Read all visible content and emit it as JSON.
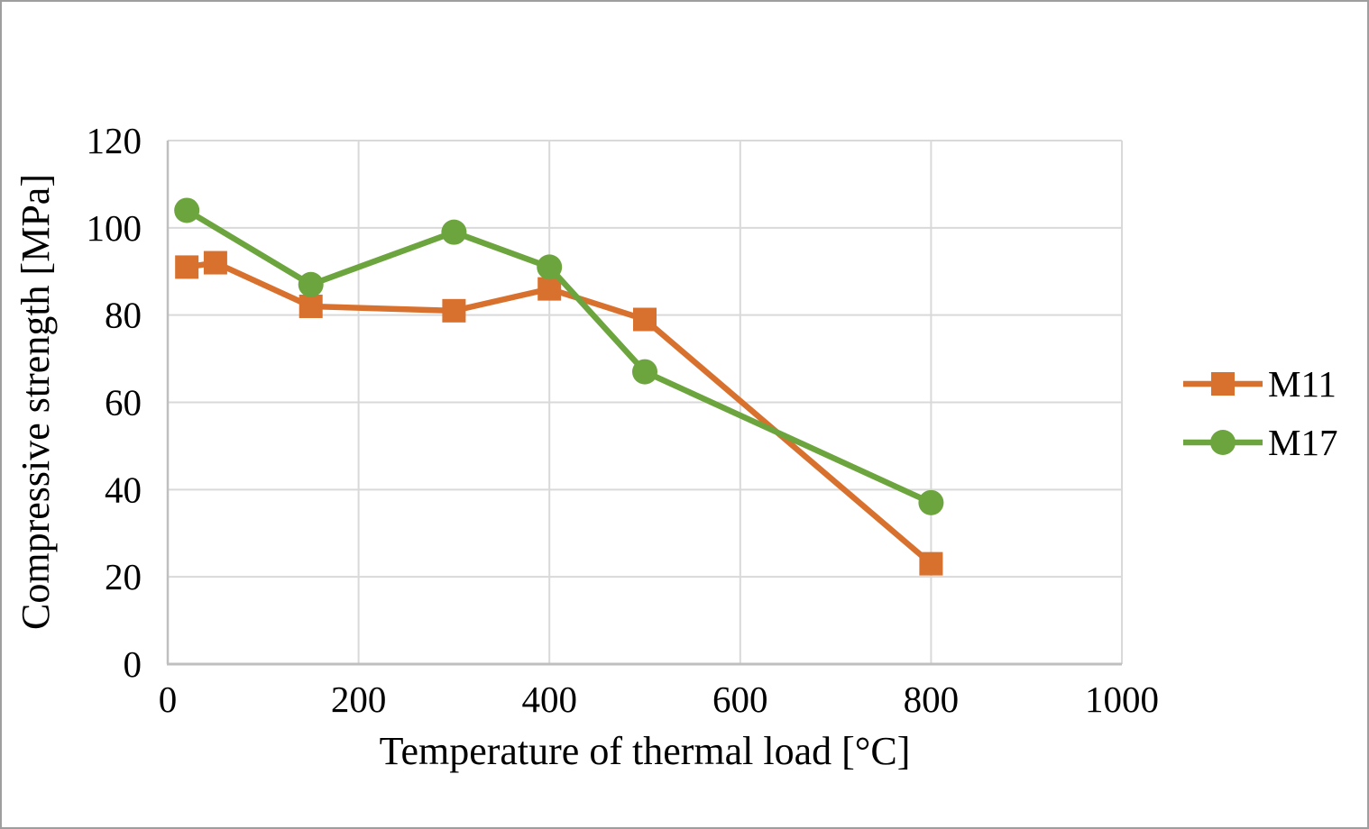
{
  "window": {
    "background": "#FFFFFF",
    "border_color": "#9E9E9E"
  },
  "chart_data": {
    "type": "line",
    "title": "",
    "xlabel": "Temperature of thermal load [°C]",
    "ylabel": "Compressive strength [MPa]",
    "xlim": [
      0,
      1000
    ],
    "ylim": [
      0,
      120
    ],
    "x_ticks": [
      0,
      200,
      400,
      600,
      800,
      1000
    ],
    "y_ticks": [
      0,
      20,
      40,
      60,
      80,
      100,
      120
    ],
    "grid": true,
    "legend_position": "right-middle",
    "series": [
      {
        "name": "M11",
        "color": "#D9712E",
        "marker": "square",
        "points": [
          [
            20,
            91
          ],
          [
            50,
            92
          ],
          [
            150,
            82
          ],
          [
            300,
            81
          ],
          [
            400,
            86
          ],
          [
            500,
            79
          ],
          [
            800,
            23
          ]
        ]
      },
      {
        "name": "M17",
        "color": "#6CA43D",
        "marker": "circle",
        "points": [
          [
            20,
            104
          ],
          [
            150,
            87
          ],
          [
            300,
            99
          ],
          [
            400,
            91
          ],
          [
            500,
            67
          ],
          [
            800,
            37
          ]
        ]
      }
    ],
    "colors": {
      "gridline": "#D9D9D9",
      "axis_line": "#BFBFBF",
      "text": "#000000"
    }
  }
}
